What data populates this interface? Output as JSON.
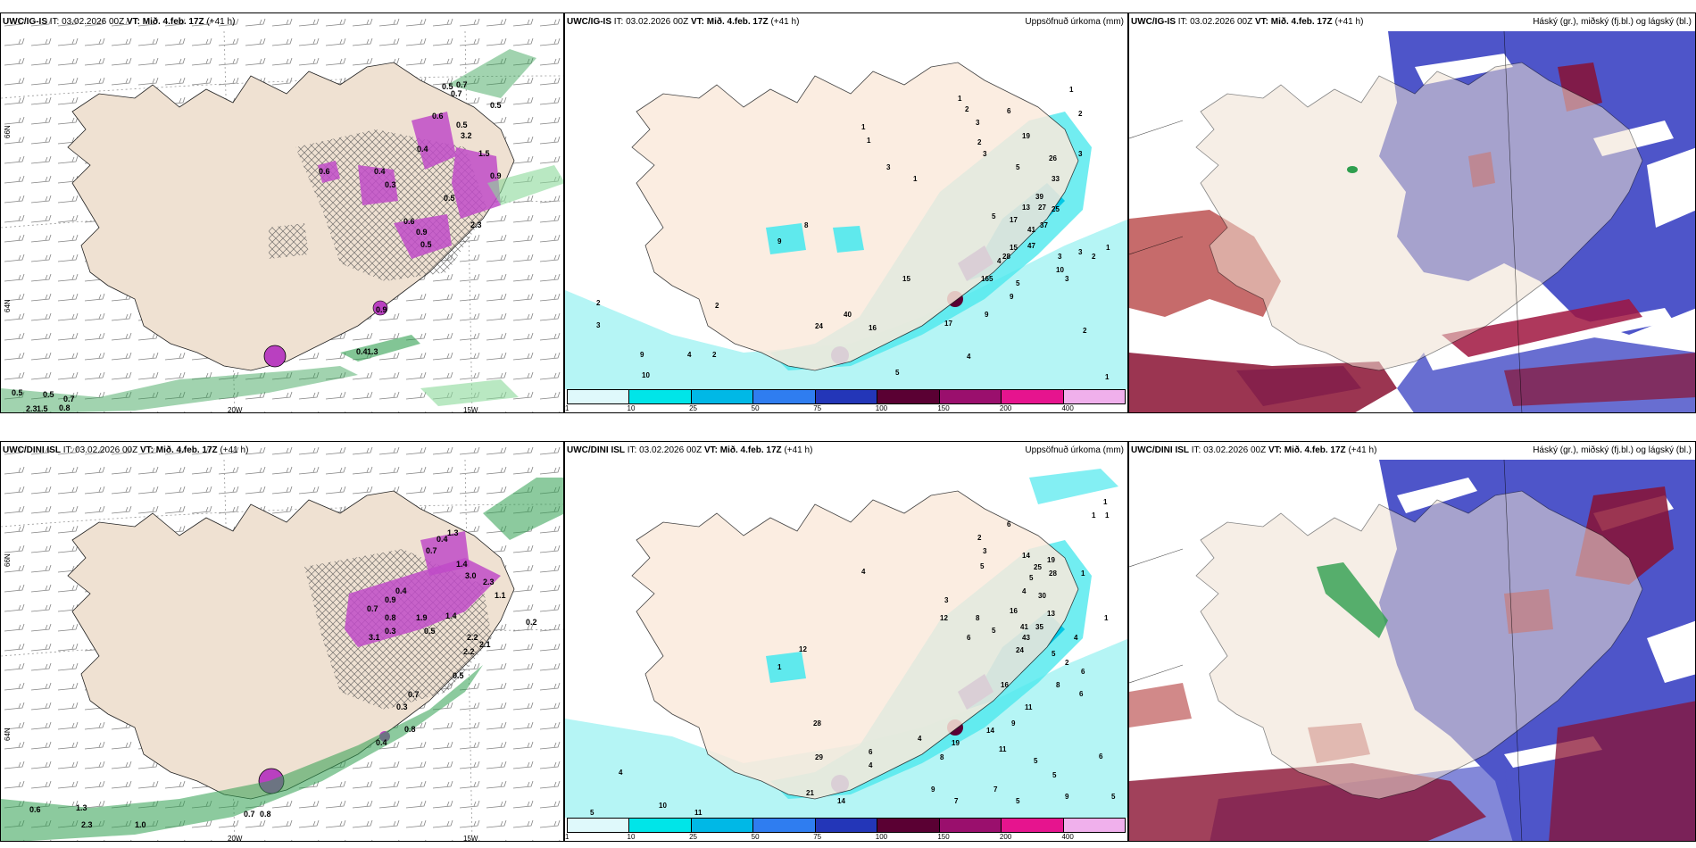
{
  "rows": [
    {
      "model": "UWC/IG-IS",
      "it_label": "IT: 03.02.2026 00Z",
      "vt_label": "VT: Mið. 4.feb. 17Z",
      "lead": "(+41 h)"
    },
    {
      "model": "UWC/DINI ISL",
      "it_label": "IT: 03.02.2026 00Z",
      "vt_label": "VT: Mið. 4.feb. 17Z",
      "lead": "(+41 h)"
    }
  ],
  "precip_title": "Uppsöfnuð úrkoma (mm)",
  "cloud_title": "Háský (gr.), miðský (fj.bl.) og lágský (bl.)",
  "lon_labels": [
    "20W",
    "15W"
  ],
  "lat_labels": [
    "66N",
    "64N"
  ],
  "colorbar": {
    "labels": [
      "1",
      "10",
      "25",
      "50",
      "75",
      "100",
      "150",
      "200",
      "400"
    ],
    "colors": [
      "#dff9fb",
      "#00e5e8",
      "#00b8e6",
      "#2f7df0",
      "#2336b8",
      "#5a0033",
      "#9a0f6d",
      "#e6148e",
      "#f0b0ec"
    ]
  },
  "panels": {
    "top_left_values": [
      "0.5",
      "0.7",
      "0.5",
      "0.7",
      "0.6",
      "0.5",
      "3.2",
      "0.4",
      "1.5",
      "0.9",
      "0.6",
      "0.4",
      "0.3",
      "0.5",
      "0.6",
      "2.3",
      "0.9",
      "0.5",
      "0.5",
      "0.7",
      "0.5",
      "2.3",
      "1.5",
      "0.8",
      "0.4",
      "1.3",
      "0.9"
    ],
    "top_mid_values": [
      "1",
      "2",
      "1",
      "2",
      "3",
      "6",
      "1",
      "19",
      "2",
      "3",
      "26",
      "3",
      "1",
      "3",
      "33",
      "1",
      "5",
      "39",
      "27",
      "25",
      "13",
      "5",
      "17",
      "41",
      "37",
      "47",
      "15",
      "3",
      "4",
      "5",
      "28",
      "3",
      "2",
      "1",
      "10",
      "16",
      "9",
      "5",
      "3",
      "17",
      "15",
      "9",
      "40",
      "16",
      "24",
      "2",
      "2",
      "3",
      "4",
      "10",
      "9",
      "2",
      "5",
      "4",
      "2",
      "8",
      "9",
      "1"
    ],
    "bot_left_values": [
      "1.3",
      "0.4",
      "0.7",
      "1.4",
      "3.0",
      "2.3",
      "1.1",
      "0.4",
      "0.9",
      "0.7",
      "1.9",
      "0.8",
      "1.4",
      "0.5",
      "0.3",
      "3.1",
      "2.2",
      "2.2",
      "2.1",
      "0.5",
      "0.7",
      "0.2",
      "0.8",
      "0.4",
      "0.3",
      "0.6",
      "1.3",
      "2.3",
      "0.7",
      "0.8",
      "1.0"
    ],
    "bot_mid_values": [
      "1",
      "1",
      "1",
      "6",
      "2",
      "14",
      "19",
      "3",
      "5",
      "25",
      "28",
      "1",
      "5",
      "4",
      "4",
      "30",
      "16",
      "3",
      "13",
      "8",
      "41",
      "35",
      "12",
      "5",
      "43",
      "1",
      "6",
      "24",
      "4",
      "5",
      "2",
      "6",
      "8",
      "16",
      "11",
      "9",
      "6",
      "12",
      "1",
      "28",
      "19",
      "14",
      "11",
      "8",
      "4",
      "5",
      "29",
      "6",
      "4",
      "6",
      "5",
      "21",
      "14",
      "9",
      "7",
      "7",
      "9",
      "5",
      "5",
      "4",
      "11",
      "10",
      "5"
    ]
  }
}
